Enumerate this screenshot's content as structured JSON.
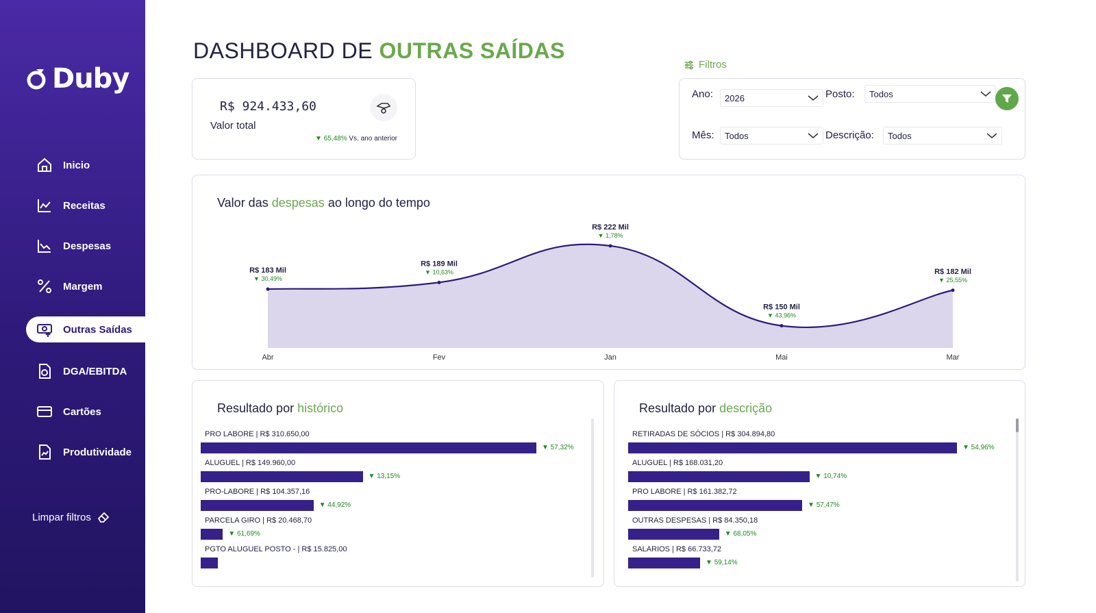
{
  "app": {
    "name": "Duby"
  },
  "sidebar": {
    "items": [
      {
        "label": "Inicio",
        "icon": "home-icon"
      },
      {
        "label": "Receitas",
        "icon": "chart-line-icon"
      },
      {
        "label": "Despesas",
        "icon": "chart-area-icon"
      },
      {
        "label": "Margem",
        "icon": "percent-icon"
      },
      {
        "label": "Outras Saídas",
        "icon": "money-out-icon",
        "active": true
      },
      {
        "label": "DGA/EBITDA",
        "icon": "document-cycle-icon"
      },
      {
        "label": "Cartões",
        "icon": "credit-card-icon"
      },
      {
        "label": "Produtividade",
        "icon": "document-chart-icon"
      }
    ],
    "clear_filters": "Limpar filtros"
  },
  "header": {
    "title_prefix": "DASHBOARD DE",
    "title_accent": "OUTRAS SAÍDAS"
  },
  "kpi": {
    "value": "R$ 924.433,60",
    "label": "Valor total",
    "delta_pct": "65,48%",
    "delta_text": "Vs. ano anterior"
  },
  "filters": {
    "title": "Filtros",
    "ano": {
      "label": "Ano:",
      "value": "2026"
    },
    "posto": {
      "label": "Posto:",
      "value": "Todos"
    },
    "mes": {
      "label": "Mês:",
      "value": "Todos"
    },
    "descricao": {
      "label": "Descrição:",
      "value": "Todos"
    }
  },
  "colors": {
    "accent": "#6aa84f",
    "brand": "#36208a",
    "positive": "#1f8a1f",
    "area": "#dcd6ec"
  },
  "line_chart": {
    "title_prefix": "Valor das",
    "title_accent": "despesas",
    "title_suffix": "ao longo do tempo"
  },
  "chart_data": {
    "type": "area",
    "categories": [
      "Abr",
      "Fev",
      "Jan",
      "Mai",
      "Mar"
    ],
    "values": [
      183,
      189,
      222,
      150,
      182
    ],
    "value_labels": [
      "R$ 183 Mil",
      "R$ 189 Mil",
      "R$ 222 Mil",
      "R$ 150 Mil",
      "R$ 182 Mil"
    ],
    "delta_labels": [
      "30,49%",
      "10,63%",
      "1,78%",
      "43,96%",
      "25,55%"
    ],
    "title": "Valor das despesas ao longo do tempo",
    "ylim": [
      130,
      230
    ],
    "grid": false
  },
  "panel_historico": {
    "title_prefix": "Resultado por",
    "title_accent": "histórico",
    "rows": [
      {
        "label": "PRO LABORE | R$ 310.650,00",
        "value": 310650.0,
        "pct": "57,32%"
      },
      {
        "label": "ALUGUEL | R$ 149.960,00",
        "value": 149960.0,
        "pct": "13,15%"
      },
      {
        "label": "PRO-LABORE | R$ 104.357,16",
        "value": 104357.16,
        "pct": "44,92%"
      },
      {
        "label": "PARCELA GIRO | R$ 20.468,70",
        "value": 20468.7,
        "pct": "61,69%"
      },
      {
        "label": "PGTO ALUGUEL POSTO - | R$ 15.825,00",
        "value": 15825.0,
        "pct": ""
      }
    ]
  },
  "panel_descricao": {
    "title_prefix": "Resultado por",
    "title_accent": "descrição",
    "rows": [
      {
        "label": "RETIRADAS DE SÓCIOS | R$ 304.894,80",
        "value": 304894.8,
        "pct": "54,96%"
      },
      {
        "label": "ALUGUEL | R$ 168.031,20",
        "value": 168031.2,
        "pct": "10,74%"
      },
      {
        "label": "PRO LABORE | R$ 161.382,72",
        "value": 161382.72,
        "pct": "57,47%"
      },
      {
        "label": "OUTRAS DESPESAS | R$ 84.350,18",
        "value": 84350.18,
        "pct": "68,05%"
      },
      {
        "label": "SALARIOS | R$ 66.733,72",
        "value": 66733.72,
        "pct": "59,14%"
      }
    ]
  }
}
